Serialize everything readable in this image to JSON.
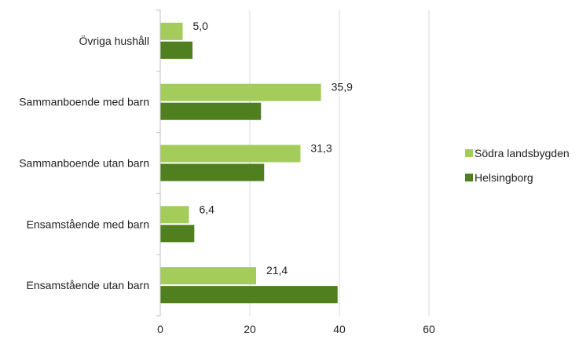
{
  "chart_data": {
    "type": "bar",
    "orientation": "horizontal",
    "categories": [
      "Övriga hushåll",
      "Sammanboende med barn",
      "Sammanboende utan barn",
      "Ensamstående med barn",
      "Ensamstående utan barn"
    ],
    "series": [
      {
        "name": "Södra landsbygden",
        "color": "#a3cc5a",
        "values": [
          5.0,
          35.9,
          31.3,
          6.4,
          21.4
        ],
        "value_labels": [
          "5,0",
          "35,9",
          "31,3",
          "6,4",
          "21,4"
        ]
      },
      {
        "name": "Helsingborg",
        "color": "#4f7f1f",
        "values": [
          7.2,
          22.5,
          23.2,
          7.6,
          39.6
        ]
      }
    ],
    "xlim": [
      0,
      60
    ],
    "xticks": [
      "0",
      "20",
      "40",
      "60"
    ],
    "grid": "vertical",
    "legend_position": "right"
  }
}
